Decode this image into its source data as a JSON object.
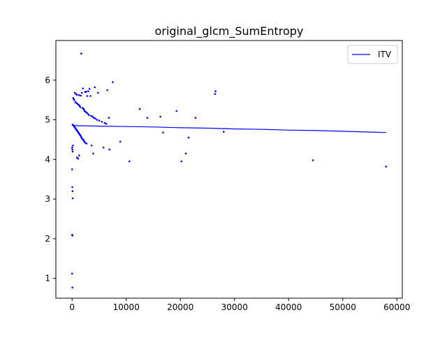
{
  "chart_data": {
    "type": "scatter",
    "title": "original_glcm_SumEntropy",
    "xlabel": "",
    "ylabel": "",
    "xlim": [
      -3000,
      61000
    ],
    "ylim": [
      0.5,
      7.0
    ],
    "xticks": [
      0,
      10000,
      20000,
      30000,
      40000,
      50000,
      60000
    ],
    "xtick_labels": [
      "0",
      "10000",
      "20000",
      "30000",
      "40000",
      "50000",
      "60000"
    ],
    "yticks": [
      1,
      2,
      3,
      4,
      5,
      6
    ],
    "ytick_labels": [
      "1",
      "2",
      "3",
      "4",
      "5",
      "6"
    ],
    "grid": false,
    "legend": {
      "position": "top-right",
      "entries": [
        {
          "label": "ITV",
          "color": "#0000ff",
          "marker": "line"
        }
      ]
    },
    "series": [
      {
        "name": "ITV",
        "type": "line",
        "color": "#0000ff",
        "x": [
          0,
          1000,
          2000,
          5000,
          10000,
          15000,
          20000,
          25000,
          30000,
          35000,
          40000,
          45000,
          50000,
          55000,
          58000
        ],
        "y": [
          4.86,
          4.85,
          4.85,
          4.84,
          4.83,
          4.82,
          4.8,
          4.79,
          4.77,
          4.76,
          4.74,
          4.73,
          4.71,
          4.69,
          4.68
        ]
      },
      {
        "type": "scatter",
        "color": "#0000ff",
        "x": [
          1700,
          7500,
          4200,
          2000,
          3200,
          3000,
          2600,
          2400,
          1800,
          500,
          700,
          900,
          1300,
          1600,
          2800,
          3400,
          4800,
          6500,
          26500,
          26400,
          200,
          300,
          400,
          600,
          800,
          1000,
          1200,
          1400,
          1500,
          1900,
          2100,
          2200,
          2300,
          2500,
          2700,
          2900,
          3100,
          3500,
          3800,
          4000,
          4300,
          4600,
          5000,
          5500,
          6000,
          6300,
          6800,
          12500,
          16300,
          19300,
          22800,
          28000,
          21500,
          16800,
          100,
          250,
          350,
          450,
          550,
          650,
          750,
          850,
          950,
          1050,
          1150,
          1250,
          1350,
          1450,
          1550,
          1650,
          1750,
          1850,
          2050,
          2150,
          2250,
          2450,
          2650,
          3600,
          5800,
          6900,
          8900,
          13900,
          21000,
          3900,
          10600,
          20200,
          44500,
          58000,
          900,
          1100,
          1300,
          0,
          50,
          100,
          150,
          0,
          50,
          80,
          120,
          0,
          60,
          0,
          40
        ],
        "y": [
          6.67,
          5.95,
          5.82,
          5.79,
          5.78,
          5.72,
          5.71,
          5.7,
          5.68,
          5.68,
          5.65,
          5.63,
          5.62,
          5.61,
          5.6,
          5.6,
          5.68,
          5.75,
          5.72,
          5.65,
          5.55,
          5.52,
          5.5,
          5.45,
          5.42,
          5.4,
          5.38,
          5.35,
          5.32,
          5.3,
          5.28,
          5.25,
          5.22,
          5.2,
          5.18,
          5.15,
          5.12,
          5.1,
          5.08,
          5.05,
          5.03,
          5.0,
          4.98,
          4.95,
          4.92,
          4.9,
          5.05,
          5.27,
          5.08,
          5.22,
          5.05,
          4.7,
          4.55,
          4.68,
          4.88,
          4.86,
          4.84,
          4.82,
          4.8,
          4.78,
          4.76,
          4.74,
          4.72,
          4.7,
          4.68,
          4.66,
          4.64,
          4.62,
          4.6,
          4.58,
          4.55,
          4.52,
          4.5,
          4.48,
          4.45,
          4.42,
          4.4,
          4.35,
          4.3,
          4.25,
          4.45,
          5.05,
          4.15,
          4.15,
          3.95,
          3.95,
          3.98,
          3.82,
          4.05,
          4.02,
          4.1,
          4.3,
          4.25,
          4.2,
          4.35,
          3.75,
          3.3,
          3.2,
          3.02,
          2.1,
          2.08,
          1.12,
          0.77
        ]
      }
    ]
  }
}
